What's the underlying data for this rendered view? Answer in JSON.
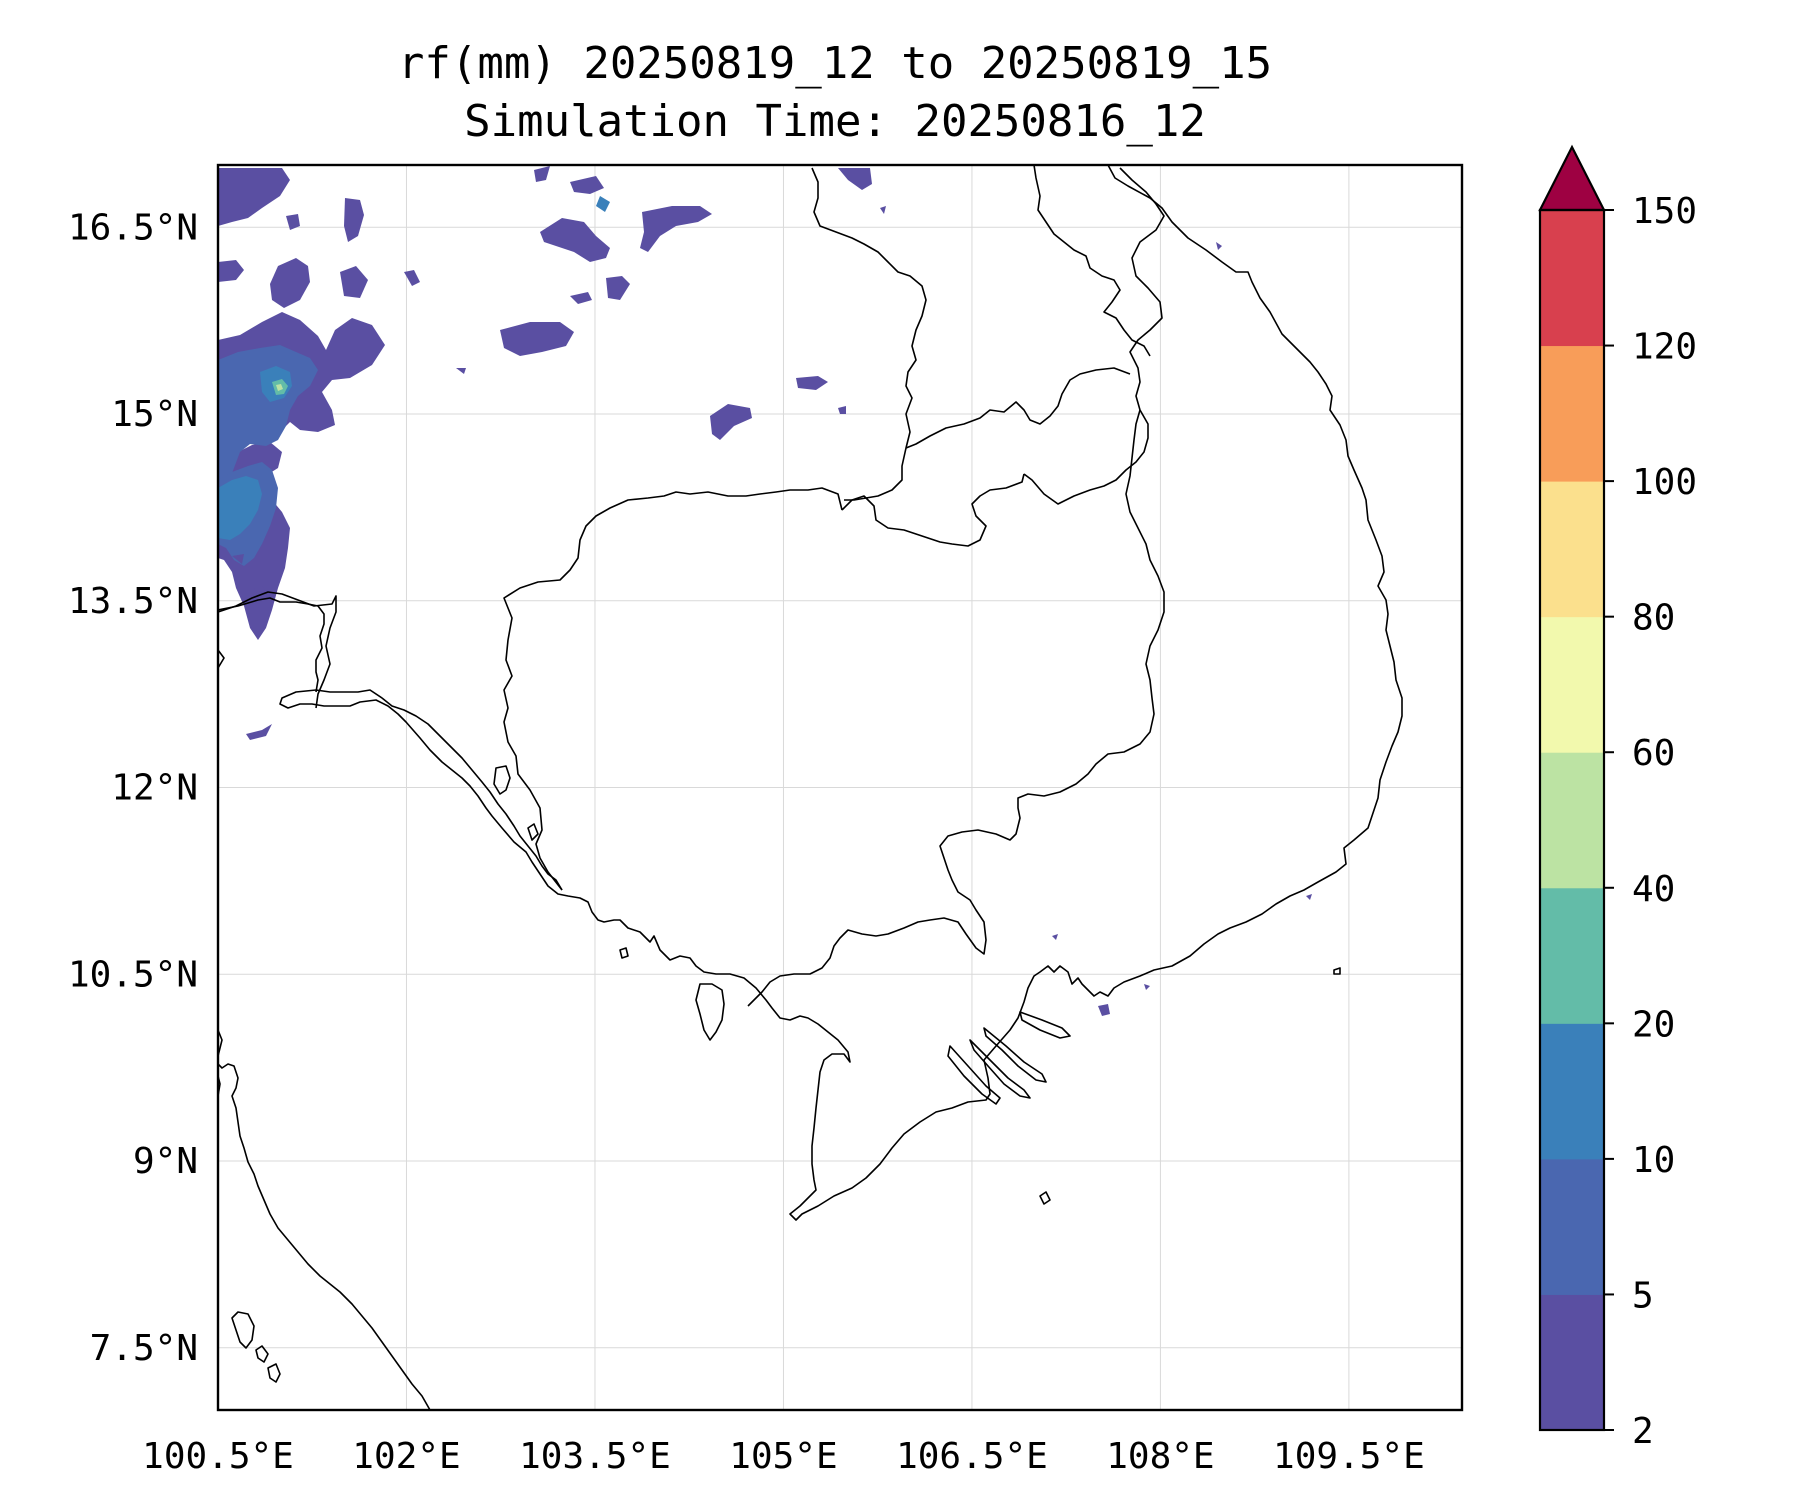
{
  "title": {
    "line1": "rf(mm) 20250819_12 to 20250819_15",
    "line2": "Simulation Time: 20250816_12"
  },
  "chart_data": {
    "type": "heatmap",
    "variable": "rf(mm)",
    "x_ticks": [
      "100.5°E",
      "102°E",
      "103.5°E",
      "105°E",
      "106.5°E",
      "108°E",
      "109.5°E"
    ],
    "x_tick_values": [
      100.5,
      102,
      103.5,
      105,
      106.5,
      108,
      109.5
    ],
    "y_ticks": [
      "16.5°N",
      "15°N",
      "13.5°N",
      "12°N",
      "10.5°N",
      "9°N",
      "7.5°N"
    ],
    "y_tick_values": [
      16.5,
      15,
      13.5,
      12,
      10.5,
      9,
      7.5
    ],
    "xlim": [
      100.5,
      110.4
    ],
    "ylim": [
      7.0,
      17.0
    ],
    "grid": true,
    "colorbar": {
      "levels": [
        2,
        5,
        10,
        20,
        40,
        60,
        80,
        100,
        120,
        150
      ],
      "labels": [
        "2",
        "5",
        "10",
        "20",
        "40",
        "60",
        "80",
        "100",
        "120",
        "150"
      ],
      "colors": [
        "#5a4fa2",
        "#4a67b0",
        "#3a80ba",
        "#63bca8",
        "#bce3a3",
        "#f2f9ad",
        "#fbe08d",
        "#f89d59",
        "#d8404e",
        "#9e0142"
      ],
      "extend": "max"
    },
    "rain_areas": [
      {
        "region": "NW Thailand band near 100.5-101.1°E, 14.2-16.9°N",
        "max_class": "40-60"
      },
      {
        "region": "N Thailand near 102.2-103.1°E, 16.3-16.8°N",
        "max_class": "5-10"
      },
      {
        "region": "Central Thailand near 102.7-103.3°E, 15.6-15.7°N",
        "max_class": "5-10"
      },
      {
        "region": "Laos near 104.2-105.0°E, 14.9-15.3°N",
        "max_class": "5-10"
      },
      {
        "region": "Laos near 104.8-105.0°E, 16.8-16.9°N",
        "max_class": "5-10"
      }
    ]
  }
}
